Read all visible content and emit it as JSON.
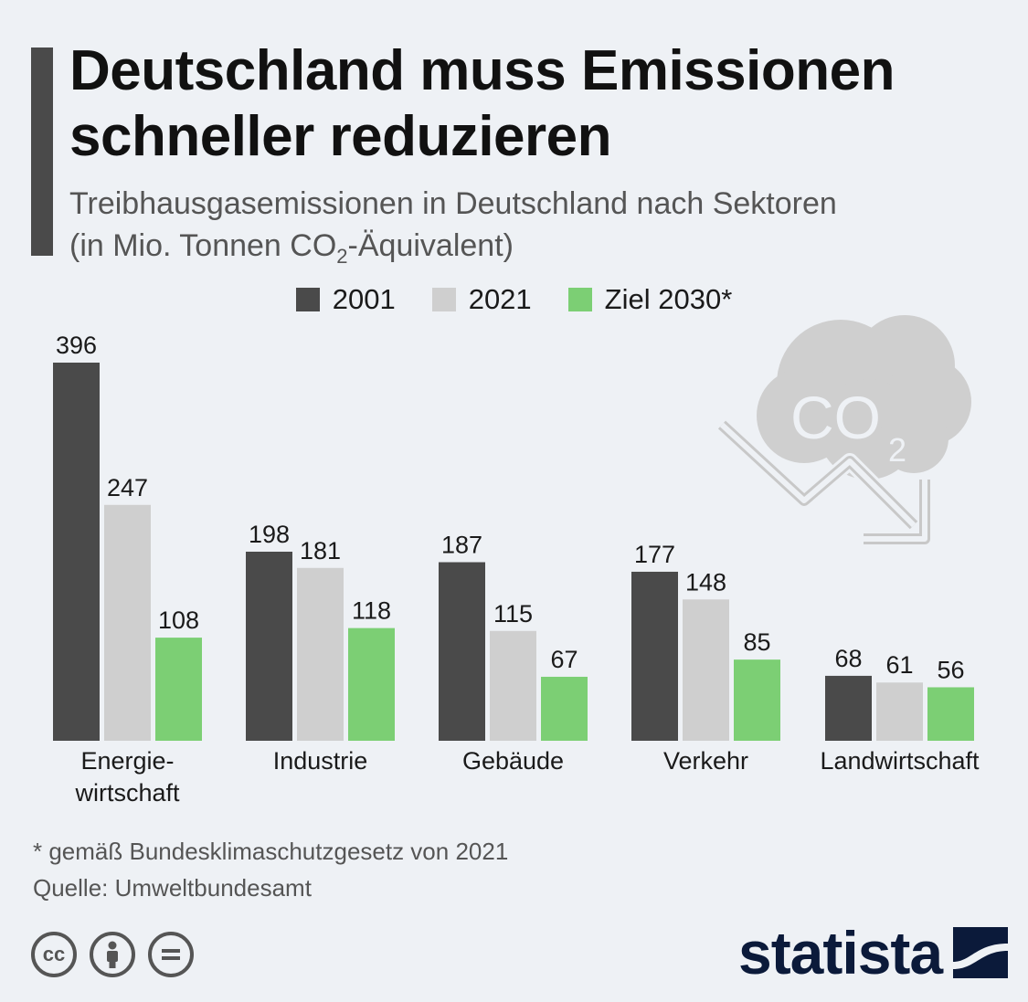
{
  "title": {
    "line1": "Deutschland muss Emissionen",
    "line2": "schneller reduzieren"
  },
  "subtitle": {
    "line1": "Treibhausgasemissionen in Deutschland nach Sektoren",
    "line2_prefix": "(in Mio. Tonnen CO",
    "line2_sub": "2",
    "line2_suffix": "-Äquivalent)"
  },
  "colors": {
    "s2001": "#4a4a4a",
    "s2021": "#cfcfcf",
    "s2030": "#7ccf74",
    "background": "#eef1f5"
  },
  "chart_data": {
    "type": "bar",
    "title": "Treibhausgasemissionen in Deutschland nach Sektoren",
    "ylabel": "Mio. Tonnen CO2-Äquivalent",
    "xlabel": "",
    "ylim": [
      0,
      400
    ],
    "categories": [
      [
        "Energie-",
        "wirtschaft"
      ],
      [
        "Industrie"
      ],
      [
        "Gebäude"
      ],
      [
        "Verkehr"
      ],
      [
        "Landwirtschaft"
      ]
    ],
    "series": [
      {
        "name": "2001",
        "color": "#4a4a4a",
        "values": [
          396,
          198,
          187,
          177,
          68
        ]
      },
      {
        "name": "2021",
        "color": "#cfcfcf",
        "values": [
          247,
          181,
          115,
          148,
          61
        ]
      },
      {
        "name": "Ziel 2030*",
        "color": "#7ccf74",
        "values": [
          108,
          118,
          67,
          85,
          56
        ]
      }
    ]
  },
  "illustration": {
    "icon": "co2-cloud-down-arrow-icon",
    "text_main": "CO",
    "text_sub": "2"
  },
  "footnote": {
    "note": "* gemäß Bundesklimaschutzgesetz von 2021",
    "source": "Quelle: Umweltbundesamt"
  },
  "brand": {
    "name": "statista",
    "icons": [
      "cc-icon",
      "by-person-icon",
      "equals-icon"
    ]
  }
}
